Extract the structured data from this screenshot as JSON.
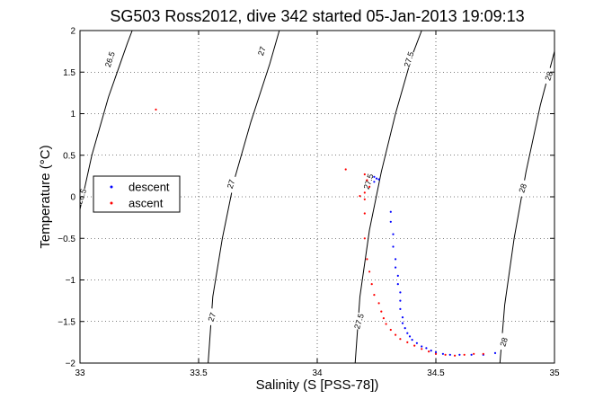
{
  "chart_data": {
    "type": "scatter",
    "title": "SG503 Ross2012, dive 342 started 05-Jan-2013 19:09:13",
    "xlabel": "Salinity (S [PSS-78])",
    "ylabel": "Temperature (°C)",
    "xlim": [
      33,
      35
    ],
    "ylim": [
      -2,
      2
    ],
    "x_ticks": [
      "33",
      "33.5",
      "34",
      "34.5",
      "35"
    ],
    "y_ticks": [
      "-2",
      "-1.5",
      "-1",
      "-0.5",
      "0",
      "0.5",
      "1",
      "1.5",
      "2"
    ],
    "grid": true,
    "legend_position": "left",
    "density_contours": [
      {
        "label": "26.5",
        "points": [
          [
            33.0,
            -0.15
          ],
          [
            33.05,
            0.5
          ],
          [
            33.12,
            1.2
          ],
          [
            33.2,
            1.85
          ],
          [
            33.22,
            2.0
          ]
        ]
      },
      {
        "label": "27",
        "points": [
          [
            33.54,
            -2.0
          ],
          [
            33.56,
            -1.2
          ],
          [
            33.6,
            -0.5
          ],
          [
            33.65,
            0.2
          ],
          [
            33.72,
            0.9
          ],
          [
            33.8,
            1.6
          ],
          [
            33.84,
            2.0
          ]
        ]
      },
      {
        "label": "27.5",
        "points": [
          [
            34.16,
            -2.0
          ],
          [
            34.18,
            -1.2
          ],
          [
            34.22,
            -0.4
          ],
          [
            34.27,
            0.3
          ],
          [
            34.33,
            1.0
          ],
          [
            34.4,
            1.7
          ],
          [
            34.44,
            2.0
          ]
        ]
      },
      {
        "label": "28",
        "points": [
          [
            34.77,
            -2.0
          ],
          [
            34.79,
            -1.3
          ],
          [
            34.83,
            -0.5
          ],
          [
            34.88,
            0.3
          ],
          [
            34.94,
            1.1
          ],
          [
            35.0,
            1.75
          ]
        ]
      }
    ],
    "contour_label_positions": [
      {
        "text": "26.5",
        "x": 33.13,
        "y": 1.65
      },
      {
        "text": "26.5",
        "x": 33.01,
        "y": 0.0
      },
      {
        "text": "27",
        "x": 33.77,
        "y": 1.75
      },
      {
        "text": "27",
        "x": 33.64,
        "y": 0.15
      },
      {
        "text": "27",
        "x": 33.56,
        "y": -1.45
      },
      {
        "text": "27.5",
        "x": 34.39,
        "y": 1.65
      },
      {
        "text": "27.5",
        "x": 34.22,
        "y": 0.18
      },
      {
        "text": "27.5",
        "x": 34.18,
        "y": -1.5
      },
      {
        "text": "28",
        "x": 34.98,
        "y": 1.45
      },
      {
        "text": "28",
        "x": 34.87,
        "y": 0.1
      },
      {
        "text": "28",
        "x": 34.79,
        "y": -1.75
      }
    ],
    "series": [
      {
        "name": "descent",
        "color": "#0000ff",
        "points": [
          [
            34.24,
            0.24
          ],
          [
            34.25,
            0.22
          ],
          [
            34.26,
            0.21
          ],
          [
            34.24,
            0.18
          ],
          [
            34.31,
            -0.18
          ],
          [
            34.31,
            -0.3
          ],
          [
            34.32,
            -0.45
          ],
          [
            34.32,
            -0.6
          ],
          [
            34.33,
            -0.75
          ],
          [
            34.33,
            -0.85
          ],
          [
            34.34,
            -0.95
          ],
          [
            34.34,
            -1.05
          ],
          [
            34.35,
            -1.15
          ],
          [
            34.35,
            -1.25
          ],
          [
            34.35,
            -1.35
          ],
          [
            34.36,
            -1.45
          ],
          [
            34.36,
            -1.52
          ],
          [
            34.37,
            -1.58
          ],
          [
            34.38,
            -1.64
          ],
          [
            34.39,
            -1.68
          ],
          [
            34.4,
            -1.72
          ],
          [
            34.42,
            -1.76
          ],
          [
            34.44,
            -1.8
          ],
          [
            34.46,
            -1.82
          ],
          [
            34.48,
            -1.85
          ],
          [
            34.5,
            -1.87
          ],
          [
            34.53,
            -1.89
          ],
          [
            34.56,
            -1.9
          ],
          [
            34.6,
            -1.9
          ],
          [
            34.65,
            -1.9
          ],
          [
            34.7,
            -1.9
          ],
          [
            34.75,
            -1.88
          ]
        ]
      },
      {
        "name": "ascent",
        "color": "#ff0000",
        "points": [
          [
            33.32,
            1.05
          ],
          [
            34.12,
            0.33
          ],
          [
            34.2,
            0.27
          ],
          [
            34.21,
            0.2
          ],
          [
            34.22,
            0.12
          ],
          [
            34.2,
            0.05
          ],
          [
            34.18,
            0.01
          ],
          [
            34.2,
            -0.03
          ],
          [
            34.2,
            -0.2
          ],
          [
            34.2,
            -0.5
          ],
          [
            34.21,
            -0.75
          ],
          [
            34.22,
            -0.9
          ],
          [
            34.23,
            -1.05
          ],
          [
            34.24,
            -1.18
          ],
          [
            34.26,
            -1.28
          ],
          [
            34.27,
            -1.38
          ],
          [
            34.28,
            -1.46
          ],
          [
            34.29,
            -1.53
          ],
          [
            34.31,
            -1.6
          ],
          [
            34.33,
            -1.66
          ],
          [
            34.35,
            -1.71
          ],
          [
            34.38,
            -1.75
          ],
          [
            34.41,
            -1.79
          ],
          [
            34.44,
            -1.83
          ],
          [
            34.47,
            -1.86
          ],
          [
            34.5,
            -1.89
          ],
          [
            34.54,
            -1.9
          ],
          [
            34.58,
            -1.91
          ],
          [
            34.62,
            -1.9
          ],
          [
            34.66,
            -1.89
          ],
          [
            34.7,
            -1.89
          ]
        ]
      }
    ]
  }
}
